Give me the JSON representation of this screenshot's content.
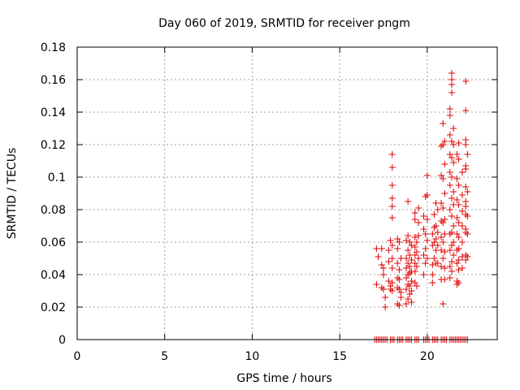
{
  "chart_data": {
    "type": "scatter",
    "title": "Day 060 of 2019, SRMTID for receiver pngm",
    "xlabel": "GPS time / hours",
    "ylabel": "SRMTID / TECUs",
    "xlim": [
      0,
      24
    ],
    "ylim": [
      0,
      0.18
    ],
    "xticks": [
      0,
      5,
      10,
      15,
      20
    ],
    "xtick_labels": [
      "0",
      "5",
      "10",
      "15",
      "20"
    ],
    "yticks": [
      0,
      0.02,
      0.04,
      0.06,
      0.08,
      0.1,
      0.12,
      0.14,
      0.16,
      0.18
    ],
    "ytick_labels": [
      "0",
      "0.02",
      "0.04",
      "0.06",
      "0.08",
      "0.1",
      "0.12",
      "0.14",
      "0.16",
      "0.18"
    ],
    "grid": true,
    "marker": "+",
    "color": "#e00000",
    "series": [
      {
        "points": [
          [
            17.1,
            0.056
          ],
          [
            17.1,
            0.034
          ],
          [
            17.2,
            0.051
          ],
          [
            17.4,
            0.046
          ],
          [
            17.4,
            0.032
          ],
          [
            17.4,
            0.056
          ],
          [
            17.5,
            0.044
          ],
          [
            17.5,
            0.04
          ],
          [
            17.5,
            0.031
          ],
          [
            17.6,
            0.02
          ],
          [
            17.6,
            0.026
          ],
          [
            17.8,
            0.055
          ],
          [
            17.8,
            0.048
          ],
          [
            17.8,
            0.036
          ],
          [
            17.9,
            0.061
          ],
          [
            17.9,
            0.033
          ],
          [
            17.9,
            0.031
          ],
          [
            18.0,
            0.114
          ],
          [
            18.0,
            0.106
          ],
          [
            18.0,
            0.095
          ],
          [
            18.0,
            0.087
          ],
          [
            18.0,
            0.082
          ],
          [
            18.0,
            0.075
          ],
          [
            18.0,
            0.058
          ],
          [
            18.0,
            0.05
          ],
          [
            18.0,
            0.044
          ],
          [
            18.0,
            0.035
          ],
          [
            18.0,
            0.03
          ],
          [
            18.3,
            0.062
          ],
          [
            18.3,
            0.056
          ],
          [
            18.3,
            0.047
          ],
          [
            18.3,
            0.038
          ],
          [
            18.3,
            0.032
          ],
          [
            18.3,
            0.022
          ],
          [
            18.4,
            0.06
          ],
          [
            18.4,
            0.043
          ],
          [
            18.4,
            0.037
          ],
          [
            18.4,
            0.031
          ],
          [
            18.4,
            0.021
          ],
          [
            18.5,
            0.05
          ],
          [
            18.5,
            0.029
          ],
          [
            18.5,
            0.026
          ],
          [
            18.8,
            0.061
          ],
          [
            18.8,
            0.05
          ],
          [
            18.8,
            0.044
          ],
          [
            18.8,
            0.038
          ],
          [
            18.8,
            0.031
          ],
          [
            18.8,
            0.022
          ],
          [
            18.9,
            0.085
          ],
          [
            18.9,
            0.064
          ],
          [
            18.9,
            0.055
          ],
          [
            18.9,
            0.047
          ],
          [
            18.9,
            0.04
          ],
          [
            18.9,
            0.034
          ],
          [
            18.9,
            0.025
          ],
          [
            19.0,
            0.06
          ],
          [
            19.0,
            0.052
          ],
          [
            19.0,
            0.045
          ],
          [
            19.0,
            0.041
          ],
          [
            19.0,
            0.033
          ],
          [
            19.0,
            0.028
          ],
          [
            19.1,
            0.058
          ],
          [
            19.1,
            0.049
          ],
          [
            19.1,
            0.042
          ],
          [
            19.1,
            0.036
          ],
          [
            19.1,
            0.03
          ],
          [
            19.1,
            0.023
          ],
          [
            19.3,
            0.078
          ],
          [
            19.3,
            0.074
          ],
          [
            19.3,
            0.063
          ],
          [
            19.3,
            0.057
          ],
          [
            19.3,
            0.052
          ],
          [
            19.3,
            0.047
          ],
          [
            19.3,
            0.042
          ],
          [
            19.3,
            0.035
          ],
          [
            19.4,
            0.06
          ],
          [
            19.4,
            0.054
          ],
          [
            19.4,
            0.045
          ],
          [
            19.4,
            0.033
          ],
          [
            19.5,
            0.081
          ],
          [
            19.5,
            0.072
          ],
          [
            19.5,
            0.064
          ],
          [
            19.5,
            0.05
          ],
          [
            19.8,
            0.076
          ],
          [
            19.8,
            0.068
          ],
          [
            19.8,
            0.052
          ],
          [
            19.8,
            0.04
          ],
          [
            19.9,
            0.088
          ],
          [
            19.9,
            0.065
          ],
          [
            19.9,
            0.056
          ],
          [
            19.9,
            0.047
          ],
          [
            20.0,
            0.101
          ],
          [
            20.0,
            0.089
          ],
          [
            20.0,
            0.074
          ],
          [
            20.0,
            0.061
          ],
          [
            20.0,
            0.05
          ],
          [
            20.3,
            0.065
          ],
          [
            20.3,
            0.058
          ],
          [
            20.3,
            0.046
          ],
          [
            20.3,
            0.04
          ],
          [
            20.3,
            0.035
          ],
          [
            20.4,
            0.077
          ],
          [
            20.4,
            0.069
          ],
          [
            20.4,
            0.06
          ],
          [
            20.4,
            0.05
          ],
          [
            20.5,
            0.084
          ],
          [
            20.5,
            0.07
          ],
          [
            20.5,
            0.062
          ],
          [
            20.5,
            0.055
          ],
          [
            20.5,
            0.047
          ],
          [
            20.6,
            0.08
          ],
          [
            20.6,
            0.066
          ],
          [
            20.6,
            0.058
          ],
          [
            20.6,
            0.047
          ],
          [
            20.8,
            0.119
          ],
          [
            20.8,
            0.101
          ],
          [
            20.8,
            0.084
          ],
          [
            20.8,
            0.073
          ],
          [
            20.8,
            0.063
          ],
          [
            20.8,
            0.055
          ],
          [
            20.8,
            0.045
          ],
          [
            20.8,
            0.037
          ],
          [
            20.9,
            0.133
          ],
          [
            20.9,
            0.12
          ],
          [
            20.9,
            0.099
          ],
          [
            20.9,
            0.081
          ],
          [
            20.9,
            0.072
          ],
          [
            20.9,
            0.06
          ],
          [
            20.9,
            0.05
          ],
          [
            20.9,
            0.022
          ],
          [
            21.0,
            0.122
          ],
          [
            21.0,
            0.108
          ],
          [
            21.0,
            0.09
          ],
          [
            21.0,
            0.074
          ],
          [
            21.0,
            0.065
          ],
          [
            21.0,
            0.054
          ],
          [
            21.0,
            0.044
          ],
          [
            21.0,
            0.037
          ],
          [
            21.3,
            0.142
          ],
          [
            21.3,
            0.138
          ],
          [
            21.3,
            0.126
          ],
          [
            21.3,
            0.114
          ],
          [
            21.3,
            0.103
          ],
          [
            21.3,
            0.095
          ],
          [
            21.3,
            0.08
          ],
          [
            21.3,
            0.065
          ],
          [
            21.3,
            0.055
          ],
          [
            21.3,
            0.045
          ],
          [
            21.3,
            0.038
          ],
          [
            21.4,
            0.164
          ],
          [
            21.4,
            0.16
          ],
          [
            21.4,
            0.157
          ],
          [
            21.4,
            0.152
          ],
          [
            21.4,
            0.122
          ],
          [
            21.4,
            0.112
          ],
          [
            21.4,
            0.1
          ],
          [
            21.4,
            0.087
          ],
          [
            21.4,
            0.076
          ],
          [
            21.4,
            0.066
          ],
          [
            21.4,
            0.058
          ],
          [
            21.4,
            0.048
          ],
          [
            21.4,
            0.042
          ],
          [
            21.5,
            0.13
          ],
          [
            21.5,
            0.12
          ],
          [
            21.5,
            0.109
          ],
          [
            21.5,
            0.091
          ],
          [
            21.5,
            0.083
          ],
          [
            21.5,
            0.07
          ],
          [
            21.5,
            0.06
          ],
          [
            21.5,
            0.052
          ],
          [
            21.7,
            0.114
          ],
          [
            21.7,
            0.099
          ],
          [
            21.7,
            0.086
          ],
          [
            21.7,
            0.075
          ],
          [
            21.7,
            0.065
          ],
          [
            21.7,
            0.055
          ],
          [
            21.7,
            0.047
          ],
          [
            21.7,
            0.036
          ],
          [
            21.7,
            0.034
          ],
          [
            21.8,
            0.121
          ],
          [
            21.8,
            0.111
          ],
          [
            21.8,
            0.095
          ],
          [
            21.8,
            0.083
          ],
          [
            21.8,
            0.072
          ],
          [
            21.8,
            0.063
          ],
          [
            21.8,
            0.056
          ],
          [
            21.8,
            0.049
          ],
          [
            21.8,
            0.043
          ],
          [
            21.8,
            0.035
          ],
          [
            22.0,
            0.103
          ],
          [
            22.0,
            0.089
          ],
          [
            22.0,
            0.079
          ],
          [
            22.0,
            0.07
          ],
          [
            22.0,
            0.06
          ],
          [
            22.0,
            0.051
          ],
          [
            22.0,
            0.044
          ],
          [
            22.2,
            0.159
          ],
          [
            22.2,
            0.141
          ],
          [
            22.2,
            0.123
          ],
          [
            22.2,
            0.12
          ],
          [
            22.2,
            0.107
          ],
          [
            22.2,
            0.105
          ],
          [
            22.2,
            0.094
          ],
          [
            22.2,
            0.085
          ],
          [
            22.2,
            0.082
          ],
          [
            22.2,
            0.077
          ],
          [
            22.2,
            0.068
          ],
          [
            22.2,
            0.066
          ],
          [
            22.2,
            0.052
          ],
          [
            22.2,
            0.049
          ],
          [
            22.3,
            0.114
          ],
          [
            22.3,
            0.091
          ],
          [
            22.3,
            0.076
          ],
          [
            22.3,
            0.065
          ],
          [
            22.3,
            0.051
          ]
        ]
      },
      {
        "points": [
          [
            17.0,
            0
          ],
          [
            17.1,
            0
          ],
          [
            17.2,
            0
          ],
          [
            17.3,
            0
          ],
          [
            17.4,
            0
          ],
          [
            17.5,
            0
          ],
          [
            17.6,
            0
          ],
          [
            17.7,
            0
          ],
          [
            17.9,
            0
          ],
          [
            18.0,
            0
          ],
          [
            18.1,
            0
          ],
          [
            18.3,
            0
          ],
          [
            18.4,
            0
          ],
          [
            18.5,
            0
          ],
          [
            18.6,
            0
          ],
          [
            18.8,
            0
          ],
          [
            18.9,
            0
          ],
          [
            19.0,
            0
          ],
          [
            19.1,
            0
          ],
          [
            19.3,
            0
          ],
          [
            19.4,
            0
          ],
          [
            19.5,
            0
          ],
          [
            19.8,
            0
          ],
          [
            19.9,
            0
          ],
          [
            20.0,
            0
          ],
          [
            20.1,
            0
          ],
          [
            20.3,
            0
          ],
          [
            20.4,
            0
          ],
          [
            20.5,
            0
          ],
          [
            20.6,
            0
          ],
          [
            20.8,
            0
          ],
          [
            20.9,
            0
          ],
          [
            21.0,
            0
          ],
          [
            21.1,
            0
          ],
          [
            21.3,
            0
          ],
          [
            21.4,
            0
          ],
          [
            21.5,
            0
          ],
          [
            21.6,
            0
          ],
          [
            21.7,
            0
          ],
          [
            21.8,
            0
          ],
          [
            21.9,
            0
          ],
          [
            22.0,
            0
          ],
          [
            22.1,
            0
          ],
          [
            22.2,
            0
          ],
          [
            22.3,
            0
          ]
        ]
      }
    ]
  }
}
